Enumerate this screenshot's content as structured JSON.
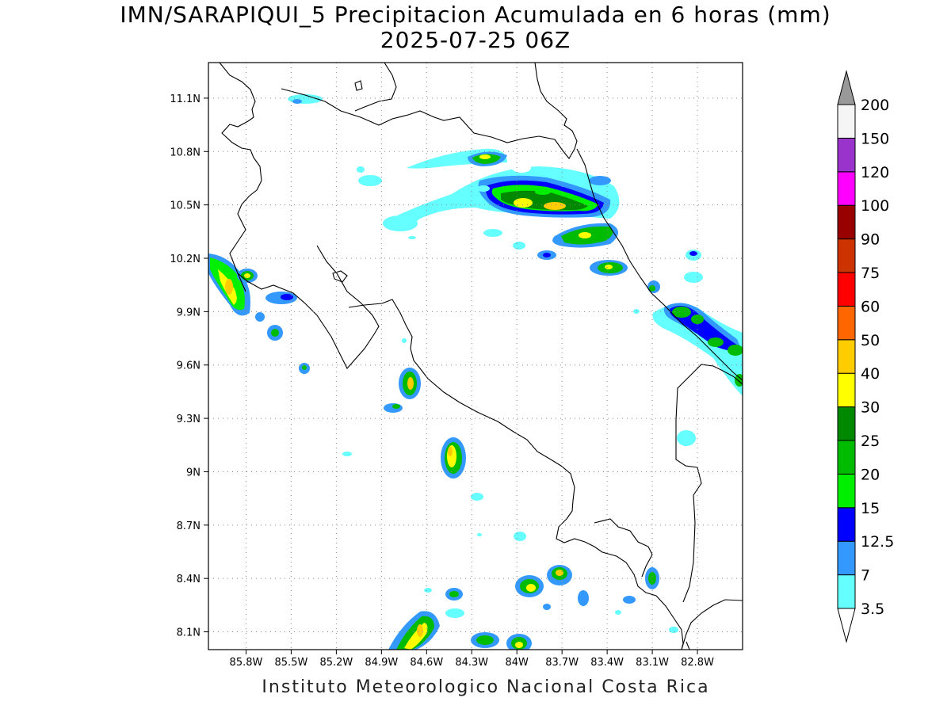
{
  "title": {
    "line1": "IMN/SARAPIQUI_5 Precipitacion Acumulada en 6 horas (mm)",
    "line2": "2025-07-25 06Z"
  },
  "footer": "Instituto Meteorologico Nacional Costa Rica",
  "map": {
    "lon_range": [
      -86.05,
      -82.5
    ],
    "lat_range": [
      8.0,
      11.3
    ],
    "lon_ticks": [
      "85.8W",
      "85.5W",
      "85.2W",
      "84.9W",
      "84.6W",
      "84.3W",
      "84W",
      "83.7W",
      "83.4W",
      "83.1W",
      "82.8W"
    ],
    "lat_ticks": [
      "11.1N",
      "10.8N",
      "10.5N",
      "10.2N",
      "9.9N",
      "9.6N",
      "9.3N",
      "9N",
      "8.7N",
      "8.4N",
      "8.1N"
    ],
    "grid": "dotted"
  },
  "colorbar": {
    "labels": [
      "3.5",
      "7",
      "12.5",
      "15",
      "20",
      "25",
      "30",
      "40",
      "50",
      "60",
      "75",
      "90",
      "100",
      "120",
      "150",
      "200"
    ],
    "colors": [
      "#66ffff",
      "#3399ff",
      "#0000ff",
      "#00ee00",
      "#00bb00",
      "#008800",
      "#ffff00",
      "#ffcc00",
      "#ff6600",
      "#ff0000",
      "#cc3300",
      "#990000",
      "#ff00ff",
      "#9933cc",
      "#f5f5f5",
      "#999999"
    ]
  }
}
